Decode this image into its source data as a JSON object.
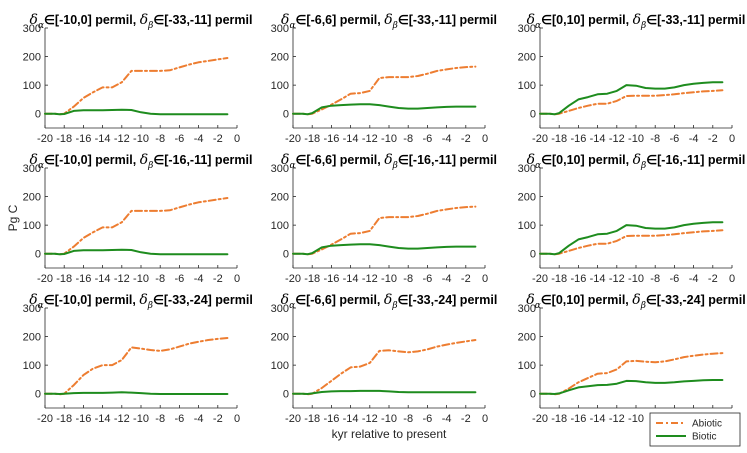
{
  "chart_data": {
    "type": "line",
    "layout": "3x3",
    "xlabel": "kyr relative to present",
    "ylabel": "Pg C",
    "xlim": [
      -20,
      0
    ],
    "ylim": [
      -50,
      300
    ],
    "xticks": [
      -20,
      -18,
      -16,
      -14,
      -12,
      -10,
      -8,
      -6,
      -4,
      -2,
      0
    ],
    "yticks": [
      0,
      100,
      200,
      300
    ],
    "legend": {
      "position": "bottom-right",
      "entries": [
        {
          "name": "Abiotic",
          "color": "#ED7D31",
          "style": "dash-dot"
        },
        {
          "name": "Biotic",
          "color": "#1E8C1E",
          "style": "solid"
        }
      ]
    },
    "panels": [
      {
        "alpha_range": "[-10,0]",
        "beta_range": "[-33,-11]",
        "series": [
          {
            "name": "Abiotic",
            "x": [
              -20,
              -19,
              -18.5,
              -18,
              -17,
              -16,
              -15,
              -14,
              -13,
              -12,
              -11,
              -10,
              -9,
              -8,
              -7,
              -6,
              -5,
              -4,
              -3,
              -2,
              -1
            ],
            "values": [
              0,
              0,
              -2,
              0,
              25,
              55,
              75,
              92,
              92,
              110,
              150,
              150,
              150,
              150,
              152,
              162,
              172,
              180,
              185,
              190,
              195
            ]
          },
          {
            "name": "Biotic",
            "x": [
              -20,
              -19,
              -18.5,
              -18,
              -17,
              -16,
              -15,
              -14,
              -13,
              -12,
              -11,
              -10,
              -9,
              -8,
              -7,
              -6,
              -5,
              -4,
              -3,
              -2,
              -1
            ],
            "values": [
              0,
              0,
              -2,
              -1,
              10,
              12,
              12,
              12,
              13,
              14,
              13,
              5,
              0,
              -2,
              -2,
              -2,
              -2,
              -2,
              -2,
              -2,
              -2
            ]
          }
        ]
      },
      {
        "alpha_range": "[-6,6]",
        "beta_range": "[-33,-11]",
        "series": [
          {
            "name": "Abiotic",
            "x": [
              -20,
              -19,
              -18.5,
              -18,
              -17,
              -16,
              -15,
              -14,
              -13,
              -12,
              -11,
              -10,
              -9,
              -8,
              -7,
              -6,
              -5,
              -4,
              -3,
              -2,
              -1
            ],
            "values": [
              0,
              0,
              -2,
              0,
              15,
              32,
              50,
              70,
              72,
              80,
              125,
              128,
              128,
              128,
              132,
              140,
              150,
              155,
              160,
              163,
              165
            ]
          },
          {
            "name": "Biotic",
            "x": [
              -20,
              -19,
              -18.5,
              -18,
              -17,
              -16,
              -15,
              -14,
              -13,
              -12,
              -11,
              -10,
              -9,
              -8,
              -7,
              -6,
              -5,
              -4,
              -3,
              -2,
              -1
            ],
            "values": [
              0,
              0,
              -2,
              2,
              22,
              28,
              30,
              32,
              33,
              33,
              30,
              25,
              20,
              18,
              18,
              20,
              22,
              24,
              25,
              25,
              25
            ]
          }
        ]
      },
      {
        "alpha_range": "[0,10]",
        "beta_range": "[-33,-11]",
        "series": [
          {
            "name": "Abiotic",
            "x": [
              -20,
              -19,
              -18.5,
              -18,
              -17,
              -16,
              -15,
              -14,
              -13,
              -12,
              -11,
              -10,
              -9,
              -8,
              -7,
              -6,
              -5,
              -4,
              -3,
              -2,
              -1
            ],
            "values": [
              0,
              0,
              -2,
              0,
              10,
              20,
              28,
              35,
              35,
              45,
              62,
              63,
              63,
              63,
              65,
              68,
              72,
              75,
              78,
              80,
              82
            ]
          },
          {
            "name": "Biotic",
            "x": [
              -20,
              -19,
              -18.5,
              -18,
              -17,
              -16,
              -15,
              -14,
              -13,
              -12,
              -11,
              -10,
              -9,
              -8,
              -7,
              -6,
              -5,
              -4,
              -3,
              -2,
              -1
            ],
            "values": [
              0,
              0,
              -2,
              2,
              28,
              50,
              58,
              68,
              70,
              80,
              100,
              98,
              90,
              88,
              88,
              92,
              100,
              105,
              108,
              110,
              110
            ]
          }
        ]
      },
      {
        "alpha_range": "[-10,0]",
        "beta_range": "[-16,-11]",
        "series": [
          {
            "name": "Abiotic",
            "x": [
              -20,
              -19,
              -18.5,
              -18,
              -17,
              -16,
              -15,
              -14,
              -13,
              -12,
              -11,
              -10,
              -9,
              -8,
              -7,
              -6,
              -5,
              -4,
              -3,
              -2,
              -1
            ],
            "values": [
              0,
              0,
              -2,
              0,
              25,
              55,
              75,
              92,
              92,
              110,
              150,
              150,
              150,
              150,
              152,
              162,
              172,
              180,
              185,
              190,
              195
            ]
          },
          {
            "name": "Biotic",
            "x": [
              -20,
              -19,
              -18.5,
              -18,
              -17,
              -16,
              -15,
              -14,
              -13,
              -12,
              -11,
              -10,
              -9,
              -8,
              -7,
              -6,
              -5,
              -4,
              -3,
              -2,
              -1
            ],
            "values": [
              0,
              0,
              -2,
              -1,
              10,
              12,
              12,
              12,
              13,
              14,
              13,
              5,
              0,
              -2,
              -2,
              -2,
              -2,
              -2,
              -2,
              -2,
              -2
            ]
          }
        ]
      },
      {
        "alpha_range": "[-6,6]",
        "beta_range": "[-16,-11]",
        "series": [
          {
            "name": "Abiotic",
            "x": [
              -20,
              -19,
              -18.5,
              -18,
              -17,
              -16,
              -15,
              -14,
              -13,
              -12,
              -11,
              -10,
              -9,
              -8,
              -7,
              -6,
              -5,
              -4,
              -3,
              -2,
              -1
            ],
            "values": [
              0,
              0,
              -2,
              0,
              15,
              32,
              50,
              70,
              72,
              80,
              125,
              128,
              128,
              128,
              132,
              140,
              150,
              155,
              160,
              163,
              165
            ]
          },
          {
            "name": "Biotic",
            "x": [
              -20,
              -19,
              -18.5,
              -18,
              -17,
              -16,
              -15,
              -14,
              -13,
              -12,
              -11,
              -10,
              -9,
              -8,
              -7,
              -6,
              -5,
              -4,
              -3,
              -2,
              -1
            ],
            "values": [
              0,
              0,
              -2,
              2,
              22,
              28,
              30,
              32,
              33,
              33,
              30,
              25,
              20,
              18,
              18,
              20,
              22,
              24,
              25,
              25,
              25
            ]
          }
        ]
      },
      {
        "alpha_range": "[0,10]",
        "beta_range": "[-16,-11]",
        "series": [
          {
            "name": "Abiotic",
            "x": [
              -20,
              -19,
              -18.5,
              -18,
              -17,
              -16,
              -15,
              -14,
              -13,
              -12,
              -11,
              -10,
              -9,
              -8,
              -7,
              -6,
              -5,
              -4,
              -3,
              -2,
              -1
            ],
            "values": [
              0,
              0,
              -2,
              0,
              10,
              20,
              28,
              35,
              35,
              45,
              62,
              63,
              63,
              63,
              65,
              68,
              72,
              75,
              78,
              80,
              82
            ]
          },
          {
            "name": "Biotic",
            "x": [
              -20,
              -19,
              -18.5,
              -18,
              -17,
              -16,
              -15,
              -14,
              -13,
              -12,
              -11,
              -10,
              -9,
              -8,
              -7,
              -6,
              -5,
              -4,
              -3,
              -2,
              -1
            ],
            "values": [
              0,
              0,
              -2,
              2,
              28,
              50,
              58,
              68,
              70,
              80,
              100,
              98,
              90,
              88,
              88,
              92,
              100,
              105,
              108,
              110,
              110
            ]
          }
        ]
      },
      {
        "alpha_range": "[-10,0]",
        "beta_range": "[-33,-24]",
        "series": [
          {
            "name": "Abiotic",
            "x": [
              -20,
              -19,
              -18.5,
              -18,
              -17,
              -16,
              -15,
              -14,
              -13,
              -12,
              -11,
              -10,
              -9,
              -8,
              -7,
              -6,
              -5,
              -4,
              -3,
              -2,
              -1
            ],
            "values": [
              0,
              0,
              -2,
              0,
              30,
              65,
              88,
              100,
              100,
              118,
              162,
              158,
              153,
              150,
              155,
              165,
              175,
              182,
              188,
              192,
              195
            ]
          },
          {
            "name": "Biotic",
            "x": [
              -20,
              -19,
              -18.5,
              -18,
              -17,
              -16,
              -15,
              -14,
              -13,
              -12,
              -11,
              -10,
              -9,
              -8,
              -7,
              -6,
              -5,
              -4,
              -3,
              -2,
              -1
            ],
            "values": [
              0,
              0,
              -1,
              0,
              2,
              3,
              3,
              3,
              4,
              5,
              4,
              2,
              0,
              -1,
              -1,
              -1,
              -1,
              -1,
              -1,
              -1,
              -1
            ]
          }
        ]
      },
      {
        "alpha_range": "[-6,6]",
        "beta_range": "[-33,-24]",
        "series": [
          {
            "name": "Abiotic",
            "x": [
              -20,
              -19,
              -18.5,
              -18,
              -17,
              -16,
              -15,
              -14,
              -13,
              -12,
              -11,
              -10,
              -9,
              -8,
              -7,
              -6,
              -5,
              -4,
              -3,
              -2,
              -1
            ],
            "values": [
              0,
              0,
              -2,
              0,
              20,
              45,
              70,
              92,
              95,
              108,
              150,
              152,
              148,
              145,
              148,
              155,
              165,
              172,
              178,
              183,
              188
            ]
          },
          {
            "name": "Biotic",
            "x": [
              -20,
              -19,
              -18.5,
              -18,
              -17,
              -16,
              -15,
              -14,
              -13,
              -12,
              -11,
              -10,
              -9,
              -8,
              -7,
              -6,
              -5,
              -4,
              -3,
              -2,
              -1
            ],
            "values": [
              0,
              0,
              -1,
              1,
              6,
              8,
              9,
              9,
              10,
              10,
              10,
              8,
              6,
              5,
              5,
              5,
              5,
              5,
              5,
              5,
              5
            ]
          }
        ]
      },
      {
        "alpha_range": "[0,10]",
        "beta_range": "[-33,-24]",
        "series": [
          {
            "name": "Abiotic",
            "x": [
              -20,
              -19,
              -18.5,
              -18,
              -17,
              -16,
              -15,
              -14,
              -13,
              -12,
              -11,
              -10,
              -9,
              -8,
              -7,
              -6,
              -5,
              -4,
              -3,
              -2,
              -1
            ],
            "values": [
              0,
              0,
              -2,
              0,
              18,
              40,
              55,
              70,
              72,
              85,
              113,
              115,
              112,
              110,
              113,
              120,
              128,
              133,
              137,
              140,
              142
            ]
          },
          {
            "name": "Biotic",
            "x": [
              -20,
              -19,
              -18.5,
              -18,
              -17,
              -16,
              -15,
              -14,
              -13,
              -12,
              -11,
              -10,
              -9,
              -8,
              -7,
              -6,
              -5,
              -4,
              -3,
              -2,
              -1
            ],
            "values": [
              0,
              0,
              -1,
              1,
              12,
              22,
              26,
              30,
              31,
              35,
              45,
              44,
              40,
              38,
              38,
              40,
              43,
              45,
              47,
              48,
              48
            ]
          }
        ]
      }
    ]
  },
  "labels": {
    "delta": "δ",
    "alpha": "α",
    "beta": "β",
    "in": "∈",
    "permil": "permil",
    "sep": ","
  }
}
